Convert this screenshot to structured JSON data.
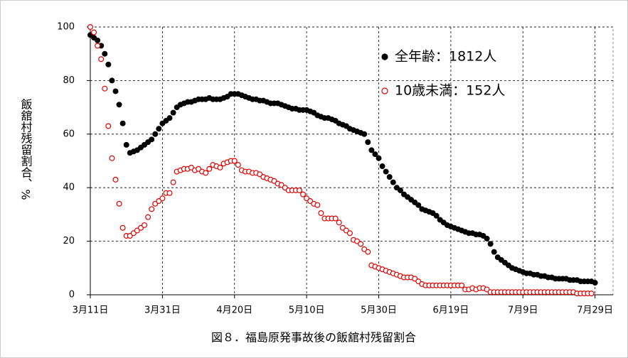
{
  "chart_data": {
    "type": "scatter",
    "title": "図８．福島原発事故後の飯舘村残留割合",
    "ylabel": "飯舘村残留割合、%",
    "x": [
      0,
      1,
      2,
      3,
      4,
      5,
      6,
      7,
      8,
      9,
      10,
      11,
      12,
      13,
      14,
      15,
      16,
      17,
      18,
      19,
      20,
      21,
      22,
      23,
      24,
      25,
      26,
      27,
      28,
      29,
      30,
      31,
      32,
      33,
      34,
      35,
      36,
      37,
      38,
      39,
      40,
      41,
      42,
      43,
      44,
      45,
      46,
      47,
      48,
      49,
      50,
      51,
      52,
      53,
      54,
      55,
      56,
      57,
      58,
      59,
      60,
      61,
      62,
      63,
      64,
      65,
      66,
      67,
      68,
      69,
      70,
      71,
      72,
      73,
      74,
      75,
      76,
      77,
      78,
      79,
      80,
      81,
      82,
      83,
      84,
      85,
      86,
      87,
      88,
      89,
      90,
      91,
      92,
      93,
      94,
      95,
      96,
      97,
      98,
      99,
      100,
      101,
      102,
      103,
      104,
      105,
      106,
      107,
      108,
      109,
      110,
      111,
      112,
      113,
      114,
      115,
      116,
      117,
      118,
      119,
      120,
      121,
      122,
      123,
      124,
      125,
      126,
      127,
      128,
      129,
      130,
      131,
      132,
      133,
      134,
      135,
      136,
      137,
      138,
      139,
      140
    ],
    "series": [
      {
        "name": "全年齢：1812人",
        "color": "#000000",
        "filled": true,
        "values": [
          97,
          96,
          95,
          93,
          90,
          86,
          80,
          76,
          71,
          64,
          56,
          53,
          53.5,
          54,
          55,
          56,
          57,
          58,
          60,
          62,
          64,
          65,
          66,
          68,
          70,
          71,
          71.5,
          72,
          72,
          72.5,
          73,
          73,
          73,
          73.5,
          73,
          73,
          73,
          73.5,
          74,
          75,
          75,
          75,
          74.5,
          74,
          73.5,
          73,
          73,
          72.5,
          72.5,
          72,
          71.5,
          71.5,
          71.5,
          71,
          70.5,
          70,
          69.5,
          69.5,
          69,
          69,
          69,
          68.5,
          68,
          67,
          66.5,
          66,
          66,
          65.5,
          65,
          64,
          63.5,
          63,
          62,
          61.5,
          61,
          60.5,
          60,
          57,
          54,
          52.5,
          51,
          48,
          46,
          44,
          42,
          40,
          39,
          37.5,
          36.5,
          35.5,
          34.5,
          33.5,
          32,
          31.5,
          31,
          30.5,
          29.5,
          28,
          27,
          26,
          25.5,
          25,
          24.5,
          24,
          23.5,
          23,
          23,
          22.5,
          22.5,
          22,
          21,
          19,
          16,
          14,
          13,
          12,
          11,
          10,
          9.5,
          9,
          8.5,
          8,
          8,
          7.5,
          7.5,
          7,
          7,
          6.5,
          6.5,
          6,
          6,
          6,
          6,
          5.5,
          5.5,
          5.5,
          5,
          5,
          5,
          5,
          4.5
        ]
      },
      {
        "name": "10歳未満：152人",
        "color": "#e00000",
        "filled": false,
        "values": [
          100,
          98,
          93,
          88,
          77,
          63,
          51,
          43,
          34,
          25,
          22,
          22,
          23,
          24,
          25,
          26,
          29,
          32,
          34,
          35,
          36,
          38,
          38,
          42,
          46,
          46.5,
          47,
          47,
          47.5,
          46.5,
          47,
          46,
          45.5,
          47,
          48.5,
          48,
          47.5,
          49,
          49.5,
          50,
          50,
          48.5,
          46.5,
          46,
          46,
          45.5,
          45.5,
          45,
          44,
          43.5,
          43,
          42.5,
          41.5,
          41,
          40,
          39,
          39,
          39,
          39,
          37.5,
          36,
          35,
          34,
          33.5,
          30.5,
          28.5,
          28.5,
          28.5,
          28.5,
          27,
          25,
          24,
          23,
          20.5,
          20,
          19,
          17,
          16,
          11,
          10.5,
          10,
          9.5,
          9,
          8.5,
          8,
          7.5,
          7,
          6.5,
          6.5,
          6.5,
          6,
          5,
          4,
          3.5,
          3.5,
          3.5,
          3.5,
          3.5,
          3.5,
          3.5,
          3.5,
          3.5,
          3.5,
          3.5,
          2,
          2,
          2.5,
          2,
          2.5,
          2.5,
          2,
          1,
          1,
          1,
          1,
          1,
          1,
          1,
          1,
          1,
          1,
          1,
          1,
          1,
          1,
          1,
          1,
          1,
          1,
          1,
          1,
          1,
          1,
          1,
          1,
          0.5,
          0.5,
          0.5,
          0.5,
          0.5
        ]
      }
    ],
    "xlim": [
      0,
      145
    ],
    "ylim": [
      0,
      100
    ],
    "xticks": [
      {
        "value": 0,
        "label": "3月11日"
      },
      {
        "value": 20,
        "label": "3月31日"
      },
      {
        "value": 40,
        "label": "4月20日"
      },
      {
        "value": 60,
        "label": "5月10日"
      },
      {
        "value": 80,
        "label": "5月30日"
      },
      {
        "value": 100,
        "label": "6月19日"
      },
      {
        "value": 120,
        "label": "7月9日"
      },
      {
        "value": 140,
        "label": "7月29日"
      }
    ],
    "yticks": [
      0,
      20,
      40,
      60,
      80,
      100
    ],
    "grid": true,
    "legend": "upper right"
  }
}
